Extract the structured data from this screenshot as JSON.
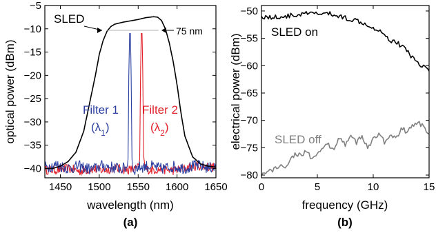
{
  "chart_data": [
    {
      "type": "line",
      "panel_label": "(a)",
      "xlabel": "wavelength (nm)",
      "ylabel": "optical power (dBm)",
      "xlim": [
        1430,
        1650
      ],
      "ylim": [
        -42,
        -5
      ],
      "xticks": [
        "1450",
        "1500",
        "1550",
        "1600",
        "1650"
      ],
      "yticks": [
        "-5",
        "-10",
        "-15",
        "-20",
        "-25",
        "-30",
        "-35",
        "-40"
      ],
      "grid": false,
      "annotations": {
        "sled": "SLED",
        "bandwidth": "75 nm",
        "filter1": "Filter 1",
        "filter1_sym": "(λ1)",
        "filter2": "Filter 2",
        "filter2_sym": "(λ2)"
      },
      "series": [
        {
          "color": "#000000",
          "x": [
            1430,
            1440,
            1450,
            1460,
            1470,
            1480,
            1490,
            1495,
            1500,
            1505,
            1510,
            1515,
            1520,
            1530,
            1540,
            1550,
            1560,
            1570,
            1575,
            1580,
            1585,
            1590,
            1595,
            1600,
            1605,
            1610,
            1620,
            1630,
            1640,
            1650
          ],
          "y": [
            -40,
            -40,
            -39.5,
            -38.5,
            -36.5,
            -32,
            -24,
            -20,
            -15.5,
            -12.5,
            -10.5,
            -9.5,
            -9,
            -8.6,
            -8.3,
            -8,
            -7.6,
            -7.4,
            -7.5,
            -8.2,
            -10,
            -13,
            -17,
            -22,
            -28,
            -33,
            -37.5,
            -39,
            -39.5,
            -39.7
          ]
        },
        {
          "color": "#2b3fa0",
          "x": [
            1430,
            1445,
            1460,
            1475,
            1490,
            1505,
            1520,
            1530,
            1535,
            1537,
            1538,
            1539,
            1540,
            1541,
            1542,
            1543,
            1545,
            1550,
            1565,
            1580,
            1595,
            1610,
            1625,
            1640,
            1650
          ],
          "y": [
            -40,
            -39.5,
            -40.2,
            -39.8,
            -40.5,
            -39.6,
            -40.1,
            -40.3,
            -40,
            -38,
            -20,
            -11,
            -11,
            -20,
            -38,
            -40.2,
            -40.5,
            -40,
            -39.7,
            -40.3,
            -39.8,
            -40.2,
            -39.6,
            -40.1,
            -39.9
          ],
          "noise_band": 2.5
        },
        {
          "color": "#e0202a",
          "x": [
            1430,
            1445,
            1460,
            1475,
            1490,
            1505,
            1520,
            1535,
            1545,
            1550,
            1552,
            1553,
            1554,
            1555,
            1556,
            1557,
            1559,
            1565,
            1580,
            1595,
            1610,
            1625,
            1640,
            1650
          ],
          "y": [
            -40.5,
            -40.5,
            -40.2,
            -40.8,
            -40.3,
            -40.6,
            -40.1,
            -40.5,
            -40.4,
            -40,
            -38,
            -20,
            -11,
            -11,
            -20,
            -38,
            -40.3,
            -40.5,
            -40.4,
            -40.6,
            -40.2,
            -39.6,
            -39.8,
            -40
          ],
          "noise_band": 2
        }
      ]
    },
    {
      "type": "line",
      "panel_label": "(b)",
      "xlabel": "frequency (GHz)",
      "ylabel": "electrical power (dBm)",
      "xlim": [
        0,
        15
      ],
      "ylim": [
        -80.5,
        -49
      ],
      "xticks": [
        "0",
        "5",
        "10",
        "15"
      ],
      "yticks": [
        "-50",
        "-55",
        "-60",
        "-65",
        "-70",
        "-75",
        "-80"
      ],
      "grid": false,
      "series": [
        {
          "name": "SLED on",
          "color": "#000000",
          "x": [
            0,
            1,
            2,
            3,
            4,
            5,
            6,
            7,
            8,
            9,
            10,
            10.5,
            11,
            11.5,
            12,
            12.5,
            13,
            13.5,
            14,
            14.5,
            15
          ],
          "y": [
            -51,
            -51.2,
            -51,
            -50.8,
            -50.5,
            -50.5,
            -50.5,
            -51,
            -51.5,
            -52,
            -53,
            -53.5,
            -54,
            -55.5,
            -55.5,
            -56.5,
            -57,
            -58.5,
            -59.5,
            -60,
            -61
          ]
        },
        {
          "name": "SLED off",
          "color": "#808080",
          "x": [
            0,
            0.5,
            1,
            1.5,
            2,
            2.5,
            3,
            3.5,
            4,
            4.5,
            5,
            5.5,
            6,
            6.5,
            7,
            7.5,
            8,
            8.5,
            9,
            9.5,
            10,
            10.5,
            11,
            11.5,
            12,
            12.5,
            13,
            13.5,
            14,
            14.5,
            15
          ],
          "y": [
            -80,
            -79.5,
            -79,
            -78.5,
            -78.5,
            -77.5,
            -76,
            -76.5,
            -75.5,
            -77,
            -76.5,
            -75,
            -74.5,
            -75.5,
            -73,
            -74.5,
            -72.5,
            -74,
            -73,
            -75,
            -73.5,
            -72.5,
            -74,
            -72.5,
            -73.5,
            -71.5,
            -72,
            -71,
            -70.5,
            -71,
            -72.5
          ]
        }
      ]
    }
  ]
}
